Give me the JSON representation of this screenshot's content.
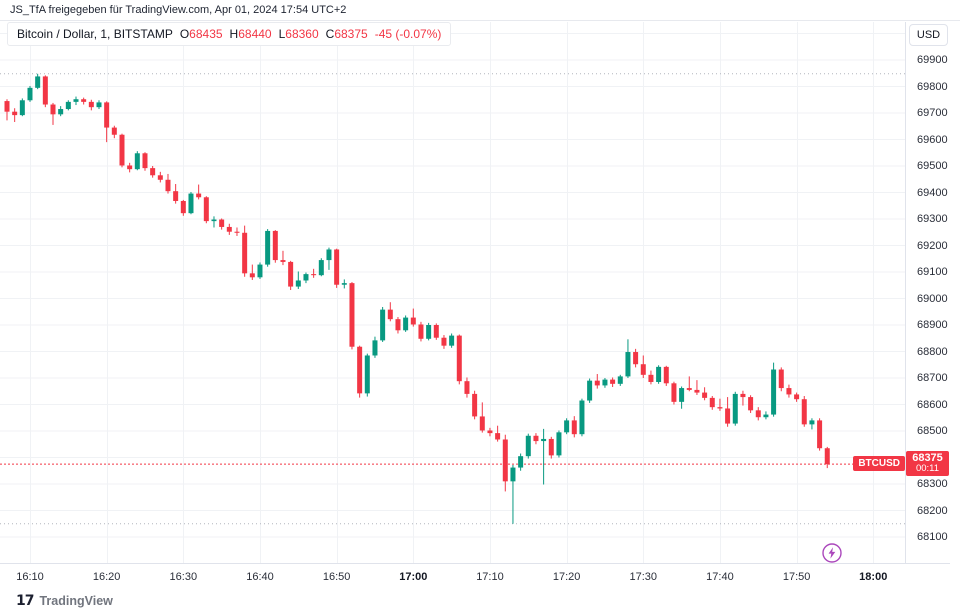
{
  "top_note": "JS_TfA freigegeben für TradingView.com, Apr 01, 2024 17:54 UTC+2",
  "legend": {
    "title": "Bitcoin / Dollar, 1, BITSTAMP",
    "ohlc": [
      [
        "O",
        "68435"
      ],
      [
        "H",
        "68440"
      ],
      [
        "L",
        "68360"
      ],
      [
        "C",
        "68375"
      ]
    ],
    "change": "-45 (-0.07%)"
  },
  "currency_button": "USD",
  "price_label": {
    "symbol": "BTCUSD",
    "price": "68375",
    "countdown": "00:11"
  },
  "footer": {
    "brand": "TradingView",
    "logo_glyph": "17"
  },
  "chart_data": {
    "type": "candlestick",
    "title": "Bitcoin / Dollar, 1 minute, BITSTAMP",
    "symbol": "BTCUSD",
    "exchange": "BITSTAMP",
    "interval_minutes": 1,
    "first_candle_time": "16:07",
    "session_high": 69848,
    "session_low": 68150,
    "last_price": 68375,
    "price_axis_labels": [
      69900,
      69800,
      69700,
      69600,
      69500,
      69400,
      69300,
      69200,
      69100,
      69000,
      68900,
      68800,
      68700,
      68600,
      68500,
      68400,
      68300,
      68200,
      68100
    ],
    "time_axis_labels": [
      {
        "t": "16:10",
        "bold": false
      },
      {
        "t": "16:20",
        "bold": false
      },
      {
        "t": "16:30",
        "bold": false
      },
      {
        "t": "16:40",
        "bold": false
      },
      {
        "t": "16:50",
        "bold": false
      },
      {
        "t": "17:00",
        "bold": true
      },
      {
        "t": "17:10",
        "bold": false
      },
      {
        "t": "17:20",
        "bold": false
      },
      {
        "t": "17:30",
        "bold": false
      },
      {
        "t": "17:40",
        "bold": false
      },
      {
        "t": "17:50",
        "bold": false
      },
      {
        "t": "18:00",
        "bold": true
      }
    ],
    "colors": {
      "up": "#089981",
      "down": "#f23645",
      "grid": "#f0f2f5",
      "axis_text": "#2a2e39",
      "session_line": "#b2b5be",
      "price_line": "#f23645",
      "label_bg": "#f23645",
      "accent_purple": "#ab47bc"
    },
    "candles": [
      [
        69745,
        69752,
        69672,
        69705
      ],
      [
        69705,
        69718,
        69666,
        69692
      ],
      [
        69692,
        69755,
        69688,
        69748
      ],
      [
        69748,
        69802,
        69742,
        69795
      ],
      [
        69795,
        69848,
        69790,
        69838
      ],
      [
        69838,
        69842,
        69722,
        69732
      ],
      [
        69732,
        69738,
        69655,
        69695
      ],
      [
        69695,
        69726,
        69688,
        69715
      ],
      [
        69715,
        69748,
        69710,
        69742
      ],
      [
        69742,
        69762,
        69730,
        69752
      ],
      [
        69752,
        69758,
        69732,
        69742
      ],
      [
        69742,
        69750,
        69710,
        69722
      ],
      [
        69722,
        69748,
        69715,
        69740
      ],
      [
        69740,
        69744,
        69590,
        69645
      ],
      [
        69645,
        69652,
        69605,
        69618
      ],
      [
        69618,
        69622,
        69495,
        69502
      ],
      [
        69502,
        69512,
        69476,
        69488
      ],
      [
        69488,
        69556,
        69484,
        69548
      ],
      [
        69548,
        69552,
        69482,
        69492
      ],
      [
        69492,
        69500,
        69456,
        69465
      ],
      [
        69465,
        69478,
        69438,
        69448
      ],
      [
        69448,
        69470,
        69396,
        69405
      ],
      [
        69405,
        69432,
        69358,
        69368
      ],
      [
        69368,
        69372,
        69312,
        69322
      ],
      [
        69322,
        69402,
        69318,
        69396
      ],
      [
        69396,
        69430,
        69374,
        69382
      ],
      [
        69382,
        69386,
        69284,
        69292
      ],
      [
        69292,
        69310,
        69268,
        69298
      ],
      [
        69298,
        69302,
        69260,
        69270
      ],
      [
        69270,
        69282,
        69240,
        69252
      ],
      [
        69252,
        69268,
        69236,
        69248
      ],
      [
        69248,
        69275,
        69082,
        69095
      ],
      [
        69095,
        69128,
        69070,
        69080
      ],
      [
        69080,
        69136,
        69074,
        69128
      ],
      [
        69128,
        69262,
        69120,
        69255
      ],
      [
        69255,
        69258,
        69135,
        69145
      ],
      [
        69145,
        69180,
        69126,
        69138
      ],
      [
        69138,
        69142,
        69032,
        69045
      ],
      [
        69045,
        69102,
        69036,
        69068
      ],
      [
        69068,
        69098,
        69058,
        69092
      ],
      [
        69092,
        69112,
        69078,
        69088
      ],
      [
        69088,
        69152,
        69084,
        69145
      ],
      [
        69145,
        69192,
        69108,
        69185
      ],
      [
        69185,
        69188,
        69040,
        69052
      ],
      [
        69052,
        69072,
        69038,
        69058
      ],
      [
        69058,
        69062,
        68808,
        68818
      ],
      [
        68818,
        68822,
        68626,
        68642
      ],
      [
        68642,
        68792,
        68630,
        68785
      ],
      [
        68785,
        68856,
        68776,
        68842
      ],
      [
        68842,
        68968,
        68836,
        68958
      ],
      [
        68958,
        68986,
        68914,
        68922
      ],
      [
        68922,
        68930,
        68868,
        68880
      ],
      [
        68880,
        68936,
        68874,
        68928
      ],
      [
        68928,
        68962,
        68894,
        68902
      ],
      [
        68902,
        68912,
        68838,
        68848
      ],
      [
        68848,
        68908,
        68842,
        68900
      ],
      [
        68900,
        68906,
        68844,
        68852
      ],
      [
        68852,
        68862,
        68810,
        68822
      ],
      [
        68822,
        68868,
        68814,
        68860
      ],
      [
        68860,
        68864,
        68676,
        68688
      ],
      [
        68688,
        68702,
        68626,
        68640
      ],
      [
        68640,
        68652,
        68544,
        68555
      ],
      [
        68555,
        68608,
        68494,
        68502
      ],
      [
        68502,
        68512,
        68480,
        68492
      ],
      [
        68492,
        68520,
        68460,
        68468
      ],
      [
        68468,
        68486,
        68272,
        68310
      ],
      [
        68310,
        68372,
        68150,
        68362
      ],
      [
        68362,
        68415,
        68350,
        68405
      ],
      [
        68405,
        68490,
        68396,
        68482
      ],
      [
        68482,
        68492,
        68450,
        68462
      ],
      [
        68462,
        68508,
        68298,
        68470
      ],
      [
        68470,
        68478,
        68396,
        68408
      ],
      [
        68408,
        68502,
        68400,
        68495
      ],
      [
        68495,
        68548,
        68488,
        68540
      ],
      [
        68540,
        68556,
        68476,
        68488
      ],
      [
        68488,
        68622,
        68480,
        68615
      ],
      [
        68615,
        68698,
        68606,
        68690
      ],
      [
        68690,
        68715,
        68660,
        68672
      ],
      [
        68672,
        68700,
        68663,
        68694
      ],
      [
        68694,
        68702,
        68666,
        68678
      ],
      [
        68678,
        68712,
        68670,
        68706
      ],
      [
        68706,
        68846,
        68700,
        68798
      ],
      [
        68798,
        68810,
        68740,
        68752
      ],
      [
        68752,
        68785,
        68700,
        68712
      ],
      [
        68712,
        68728,
        68676,
        68685
      ],
      [
        68685,
        68748,
        68678,
        68742
      ],
      [
        68742,
        68746,
        68670,
        68680
      ],
      [
        68680,
        68686,
        68600,
        68610
      ],
      [
        68610,
        68668,
        68584,
        68662
      ],
      [
        68662,
        68706,
        68650,
        68655
      ],
      [
        68655,
        68692,
        68636,
        68645
      ],
      [
        68645,
        68665,
        68616,
        68625
      ],
      [
        68625,
        68632,
        68580,
        68590
      ],
      [
        68590,
        68622,
        68576,
        68585
      ],
      [
        68585,
        68628,
        68516,
        68528
      ],
      [
        68528,
        68648,
        68520,
        68640
      ],
      [
        68640,
        68652,
        68596,
        68628
      ],
      [
        68628,
        68635,
        68568,
        68578
      ],
      [
        68578,
        68590,
        68540,
        68552
      ],
      [
        68552,
        68574,
        68544,
        68562
      ],
      [
        68562,
        68758,
        68554,
        68732
      ],
      [
        68732,
        68740,
        68650,
        68662
      ],
      [
        68662,
        68675,
        68626,
        68638
      ],
      [
        68638,
        68645,
        68610,
        68620
      ],
      [
        68620,
        68632,
        68516,
        68525
      ],
      [
        68525,
        68548,
        68506,
        68540
      ],
      [
        68540,
        68548,
        68426,
        68435
      ],
      [
        68435,
        68440,
        68360,
        68375
      ]
    ]
  }
}
